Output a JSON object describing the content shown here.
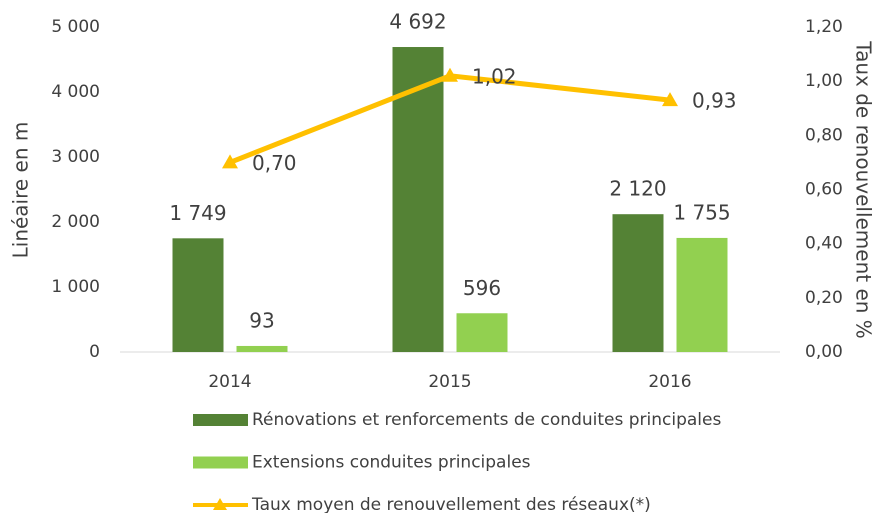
{
  "chart_data": {
    "type": "bar_line",
    "categories": [
      "2014",
      "2015",
      "2016"
    ],
    "series": [
      {
        "name": "Rénovations et renforcements de conduites principales",
        "color": "#548235",
        "type": "bar",
        "values": [
          1749,
          4692,
          2120
        ],
        "value_labels": [
          "1 749",
          "4 692",
          "2 120"
        ]
      },
      {
        "name": "Extensions conduites principales",
        "color": "#92d050",
        "type": "bar",
        "values": [
          93,
          596,
          1755
        ],
        "value_labels": [
          "93",
          "596",
          "1 755"
        ]
      },
      {
        "name": "Taux moyen de renouvellement des réseaux(*)",
        "color": "#ffc000",
        "type": "line",
        "axis": "y2",
        "values": [
          0.7,
          1.02,
          0.93
        ],
        "value_labels": [
          "0,70",
          "1,02",
          "0,93"
        ]
      }
    ],
    "ylabel": "Linéaire en m",
    "y2label": "Taux de renouvellement en %",
    "ylim": [
      0,
      5000
    ],
    "yticks": [
      0,
      {
        "value": 1000,
        "label": "1 000"
      },
      {
        "value": 2000,
        "label": "2 000"
      },
      {
        "value": 3000,
        "label": "3 000"
      },
      {
        "value": 4000,
        "label": "4 000"
      },
      {
        "value": 5000,
        "label": "5 000"
      }
    ],
    "y2lim": [
      0,
      1.2
    ],
    "y2ticks": [
      {
        "value": 0,
        "label": "0,00"
      },
      {
        "value": 0.2,
        "label": "0,20"
      },
      {
        "value": 0.4,
        "label": "0,40"
      },
      {
        "value": 0.6,
        "label": "0,60"
      },
      {
        "value": 0.8,
        "label": "0,80"
      },
      {
        "value": 1.0,
        "label": "1,00"
      },
      {
        "value": 1.2,
        "label": "1,20"
      }
    ],
    "legend": "bottom",
    "grid": false
  }
}
